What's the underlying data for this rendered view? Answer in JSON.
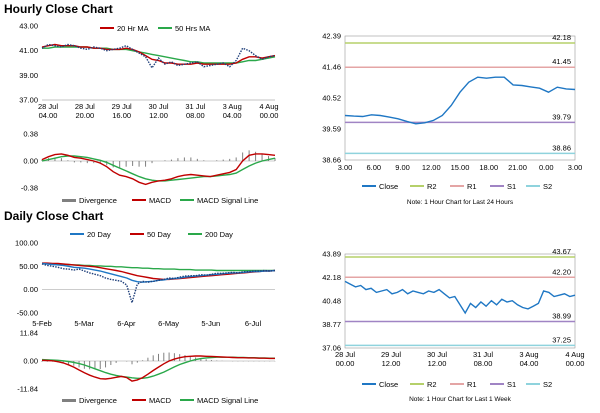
{
  "sections": {
    "hourly_title": "Hourly Close Chart",
    "daily_title": "Daily Close Chart"
  },
  "colors": {
    "ma_short": "#c00000",
    "ma_long": "#2aa84a",
    "close": "#1f77c4",
    "r2": "#b5d06a",
    "r1": "#e4a5a5",
    "s1": "#a084c4",
    "s2": "#8fd3dd",
    "divergence": "#808080",
    "price_dotted": "#1f3f7a"
  },
  "chart_data": [
    {
      "id": "hourly-price-ma",
      "type": "line",
      "title": "Hourly Close Chart",
      "ylim": [
        37.0,
        43.0
      ],
      "yticks": [
        "43.00",
        "41.00",
        "39.00",
        "37.00"
      ],
      "yticks_values": [
        43,
        41,
        39,
        37
      ],
      "xticks": [
        [
          "28 Jul",
          "04.00"
        ],
        [
          "28 Jul",
          "20.00"
        ],
        [
          "29 Jul",
          "16.00"
        ],
        [
          "30 Jul",
          "12.00"
        ],
        [
          "31 Jul",
          "08.00"
        ],
        [
          "3 Aug",
          "04.00"
        ],
        [
          "4 Aug",
          "00.00"
        ]
      ],
      "legend": [
        "20 Hr MA",
        "50 Hrs MA"
      ],
      "n": 37,
      "price": [
        41.2,
        41.5,
        41.4,
        41.3,
        41.5,
        41.4,
        41.2,
        41.1,
        41.3,
        41.2,
        41.0,
        41.1,
        41.2,
        41.4,
        41.1,
        40.8,
        40.5,
        39.6,
        40.4,
        39.9,
        40.1,
        39.8,
        39.9,
        40.0,
        40.1,
        39.7,
        39.8,
        39.9,
        40.0,
        39.7,
        40.2,
        41.2,
        41.0,
        40.6,
        40.3,
        40.5,
        40.6
      ],
      "ma20": [
        41.3,
        41.4,
        41.5,
        41.4,
        41.4,
        41.4,
        41.3,
        41.3,
        41.2,
        41.2,
        41.1,
        41.1,
        41.1,
        41.2,
        41.1,
        40.9,
        40.6,
        40.3,
        40.2,
        40.0,
        40.0,
        39.9,
        39.9,
        39.9,
        40.0,
        39.9,
        39.9,
        39.9,
        39.9,
        39.9,
        40.0,
        40.3,
        40.5,
        40.5,
        40.4,
        40.5,
        40.6
      ],
      "ma50": [
        41.2,
        41.2,
        41.3,
        41.3,
        41.3,
        41.3,
        41.3,
        41.3,
        41.2,
        41.2,
        41.2,
        41.1,
        41.1,
        41.1,
        41.0,
        40.9,
        40.8,
        40.7,
        40.6,
        40.5,
        40.4,
        40.3,
        40.2,
        40.1,
        40.1,
        40.0,
        40.0,
        40.0,
        40.0,
        40.0,
        40.0,
        40.1,
        40.2,
        40.2,
        40.3,
        40.4,
        40.5
      ]
    },
    {
      "id": "hourly-macd",
      "type": "line",
      "ylim": [
        -0.38,
        0.38
      ],
      "yticks": [
        "0.38",
        "0.00",
        "-0.38"
      ],
      "yticks_values": [
        0.38,
        0.0,
        -0.38
      ],
      "legend": [
        "Divergence",
        "MACD",
        "MACD Signal Line"
      ],
      "n": 37,
      "macd": [
        0.02,
        0.06,
        0.09,
        0.1,
        0.08,
        0.05,
        0.04,
        0.02,
        0.0,
        -0.03,
        -0.08,
        -0.15,
        -0.2,
        -0.22,
        -0.25,
        -0.3,
        -0.33,
        -0.3,
        -0.28,
        -0.27,
        -0.25,
        -0.22,
        -0.2,
        -0.19,
        -0.2,
        -0.21,
        -0.22,
        -0.2,
        -0.18,
        -0.16,
        -0.12,
        0.0,
        0.08,
        0.1,
        0.1,
        0.09,
        0.08
      ],
      "signal": [
        0.0,
        0.02,
        0.04,
        0.06,
        0.07,
        0.07,
        0.06,
        0.05,
        0.03,
        0.01,
        -0.02,
        -0.06,
        -0.1,
        -0.14,
        -0.18,
        -0.22,
        -0.25,
        -0.27,
        -0.28,
        -0.28,
        -0.27,
        -0.26,
        -0.25,
        -0.24,
        -0.23,
        -0.22,
        -0.22,
        -0.21,
        -0.2,
        -0.19,
        -0.17,
        -0.12,
        -0.07,
        -0.03,
        0.0,
        0.02,
        0.04
      ],
      "divergence": [
        0.02,
        0.04,
        0.05,
        0.04,
        0.01,
        -0.02,
        -0.02,
        -0.03,
        -0.03,
        -0.04,
        -0.06,
        -0.09,
        -0.1,
        -0.08,
        -0.07,
        -0.08,
        -0.08,
        -0.03,
        0.0,
        0.01,
        0.02,
        0.04,
        0.05,
        0.05,
        0.03,
        0.01,
        0.0,
        0.01,
        0.02,
        0.03,
        0.05,
        0.12,
        0.15,
        0.13,
        0.1,
        0.07,
        0.04
      ]
    },
    {
      "id": "hourly-levels",
      "type": "line",
      "ylim": [
        38.66,
        42.39
      ],
      "yticks": [
        "42.39",
        "41.46",
        "40.52",
        "39.59",
        "38.66"
      ],
      "yticks_values": [
        42.39,
        41.46,
        40.52,
        39.59,
        38.66
      ],
      "xticks": [
        "3.00",
        "6.00",
        "9.00",
        "12.00",
        "15.00",
        "18.00",
        "21.00",
        "0.00",
        "3.00"
      ],
      "legend": [
        "Close",
        "R2",
        "R1",
        "S1",
        "S2"
      ],
      "levels": {
        "R2": 42.18,
        "R1": 41.45,
        "S1": 39.79,
        "S2": 38.86
      },
      "level_labels": {
        "R2": "42.18",
        "R1": "41.45",
        "S1": "39.79",
        "S2": "38.86"
      },
      "note": "Note: 1 Hour Chart for Last 24 Hours",
      "close": [
        40.0,
        39.98,
        39.97,
        40.02,
        40.0,
        39.95,
        39.9,
        39.82,
        39.75,
        39.78,
        39.85,
        40.0,
        40.3,
        40.7,
        41.0,
        41.15,
        41.12,
        41.15,
        41.15,
        40.92,
        40.9,
        40.86,
        40.82,
        40.7,
        40.85,
        40.8,
        40.78
      ]
    },
    {
      "id": "daily-price-ma",
      "type": "line",
      "title": "Daily Close Chart",
      "ylim": [
        -50.0,
        100.0
      ],
      "yticks": [
        "100.00",
        "50.00",
        "0.00",
        "-50.00"
      ],
      "yticks_values": [
        100,
        50,
        0,
        -50
      ],
      "xticks": [
        "5-Feb",
        "5-Mar",
        "6-Apr",
        "6-May",
        "5-Jun",
        "6-Jul"
      ],
      "legend": [
        "20 Day",
        "50 Day",
        "200 Day"
      ],
      "n": 45,
      "price": [
        55,
        52,
        50,
        48,
        45,
        44,
        42,
        44,
        40,
        36,
        33,
        30,
        25,
        22,
        20,
        18,
        10,
        -28,
        12,
        18,
        16,
        18,
        20,
        22,
        25,
        24,
        27,
        29,
        30,
        30,
        32,
        31,
        33,
        35,
        35,
        36,
        37,
        36,
        38,
        39,
        40,
        40,
        41,
        40,
        41
      ],
      "d20": [
        56,
        55,
        54,
        53,
        52,
        50,
        48,
        47,
        46,
        44,
        42,
        40,
        37,
        34,
        31,
        28,
        25,
        20,
        17,
        16,
        17,
        18,
        20,
        21,
        23,
        24,
        25,
        27,
        28,
        29,
        30,
        31,
        32,
        33,
        34,
        35,
        36,
        36,
        37,
        38,
        39,
        39,
        40,
        40,
        41
      ],
      "d50": [
        57,
        57,
        56,
        56,
        55,
        54,
        53,
        52,
        51,
        50,
        49,
        47,
        45,
        43,
        41,
        39,
        36,
        33,
        30,
        28,
        26,
        24,
        23,
        22,
        22,
        23,
        24,
        25,
        26,
        27,
        28,
        29,
        30,
        31,
        32,
        33,
        34,
        35,
        36,
        37,
        38,
        39,
        40,
        40,
        41
      ],
      "d200": [
        56,
        56,
        55,
        55,
        54,
        54,
        53,
        53,
        52,
        52,
        51,
        51,
        50,
        50,
        49,
        49,
        48,
        47,
        47,
        46,
        46,
        45,
        45,
        44,
        44,
        44,
        43,
        43,
        43,
        42,
        42,
        42,
        42,
        41,
        41,
        41,
        41,
        41,
        41,
        41,
        41,
        41,
        41,
        41,
        41
      ]
    },
    {
      "id": "daily-macd",
      "type": "line",
      "ylim": [
        -11.84,
        11.84
      ],
      "yticks": [
        "11.84",
        "0.00",
        "-11.84"
      ],
      "yticks_values": [
        11.84,
        0.0,
        -11.84
      ],
      "legend": [
        "Divergence",
        "MACD",
        "MACD Signal Line"
      ],
      "n": 45,
      "macd": [
        0.3,
        0.2,
        0.1,
        -0.3,
        -0.8,
        -1.6,
        -2.6,
        -3.8,
        -5.0,
        -6.0,
        -6.8,
        -7.5,
        -7.6,
        -7.3,
        -6.9,
        -6.5,
        -7.0,
        -8.5,
        -8.0,
        -7.0,
        -5.6,
        -4.0,
        -2.6,
        -1.2,
        0.0,
        0.8,
        1.4,
        1.8,
        2.0,
        2.1,
        2.1,
        2.0,
        1.9,
        1.8,
        1.7,
        1.6,
        1.5,
        1.4,
        1.4,
        1.3,
        1.3,
        1.2,
        1.2,
        1.1,
        1.1
      ],
      "signal": [
        0.6,
        0.5,
        0.4,
        0.3,
        0.1,
        -0.2,
        -0.6,
        -1.1,
        -1.7,
        -2.5,
        -3.3,
        -4.1,
        -4.9,
        -5.6,
        -6.1,
        -6.5,
        -6.8,
        -7.1,
        -7.3,
        -7.3,
        -7.0,
        -6.4,
        -5.6,
        -4.7,
        -3.6,
        -2.5,
        -1.5,
        -0.7,
        0.0,
        0.6,
        1.0,
        1.3,
        1.5,
        1.6,
        1.6,
        1.6,
        1.6,
        1.5,
        1.5,
        1.4,
        1.4,
        1.3,
        1.3,
        1.2,
        1.2
      ],
      "divergence": [
        -0.3,
        -0.3,
        -0.3,
        -0.6,
        -0.9,
        -1.4,
        -2.0,
        -2.7,
        -3.3,
        -3.5,
        -3.5,
        -3.4,
        -2.7,
        -1.7,
        -0.8,
        0.0,
        -0.2,
        -1.4,
        -0.7,
        0.3,
        1.4,
        2.4,
        3.0,
        3.5,
        3.6,
        3.3,
        2.9,
        2.5,
        2.0,
        1.5,
        1.1,
        0.7,
        0.4,
        0.2,
        0.1,
        0.0,
        -0.1,
        -0.1,
        -0.1,
        -0.1,
        -0.1,
        -0.1,
        -0.1,
        -0.1,
        -0.1
      ]
    },
    {
      "id": "daily-levels",
      "type": "line",
      "ylim": [
        37.06,
        43.89
      ],
      "yticks": [
        "43.89",
        "42.18",
        "40.48",
        "38.77",
        "37.06"
      ],
      "yticks_values": [
        43.89,
        42.18,
        40.48,
        38.77,
        37.06
      ],
      "xticks": [
        [
          "28 Jul",
          "00.00"
        ],
        [
          "29 Jul",
          "12.00"
        ],
        [
          "30 Jul",
          "12.00"
        ],
        [
          "31 Jul",
          "08.00"
        ],
        [
          "3 Aug",
          "04.00"
        ],
        [
          "4 Aug",
          "00.00"
        ]
      ],
      "legend": [
        "Close",
        "R2",
        "R1",
        "S1",
        "S2"
      ],
      "levels": {
        "R2": 43.67,
        "R1": 42.2,
        "S1": 38.99,
        "S2": 37.25
      },
      "level_labels": {
        "R2": "43.67",
        "R1": "42.20",
        "S1": "38.99",
        "S2": "37.25"
      },
      "note": "Note: 1 Hour Chart for Last 1 Week",
      "close": [
        41.9,
        41.7,
        41.5,
        41.6,
        41.3,
        41.4,
        41.1,
        41.2,
        41.3,
        41.0,
        41.1,
        41.3,
        41.0,
        41.2,
        41.1,
        41.0,
        41.2,
        41.1,
        41.3,
        41.0,
        40.7,
        40.8,
        40.2,
        39.6,
        40.3,
        40.0,
        40.4,
        40.1,
        40.5,
        40.2,
        40.6,
        40.4,
        40.5,
        40.2,
        40.0,
        39.9,
        40.1,
        40.3,
        41.2,
        41.1,
        40.8,
        40.9,
        41.0,
        40.8,
        40.9
      ]
    }
  ]
}
